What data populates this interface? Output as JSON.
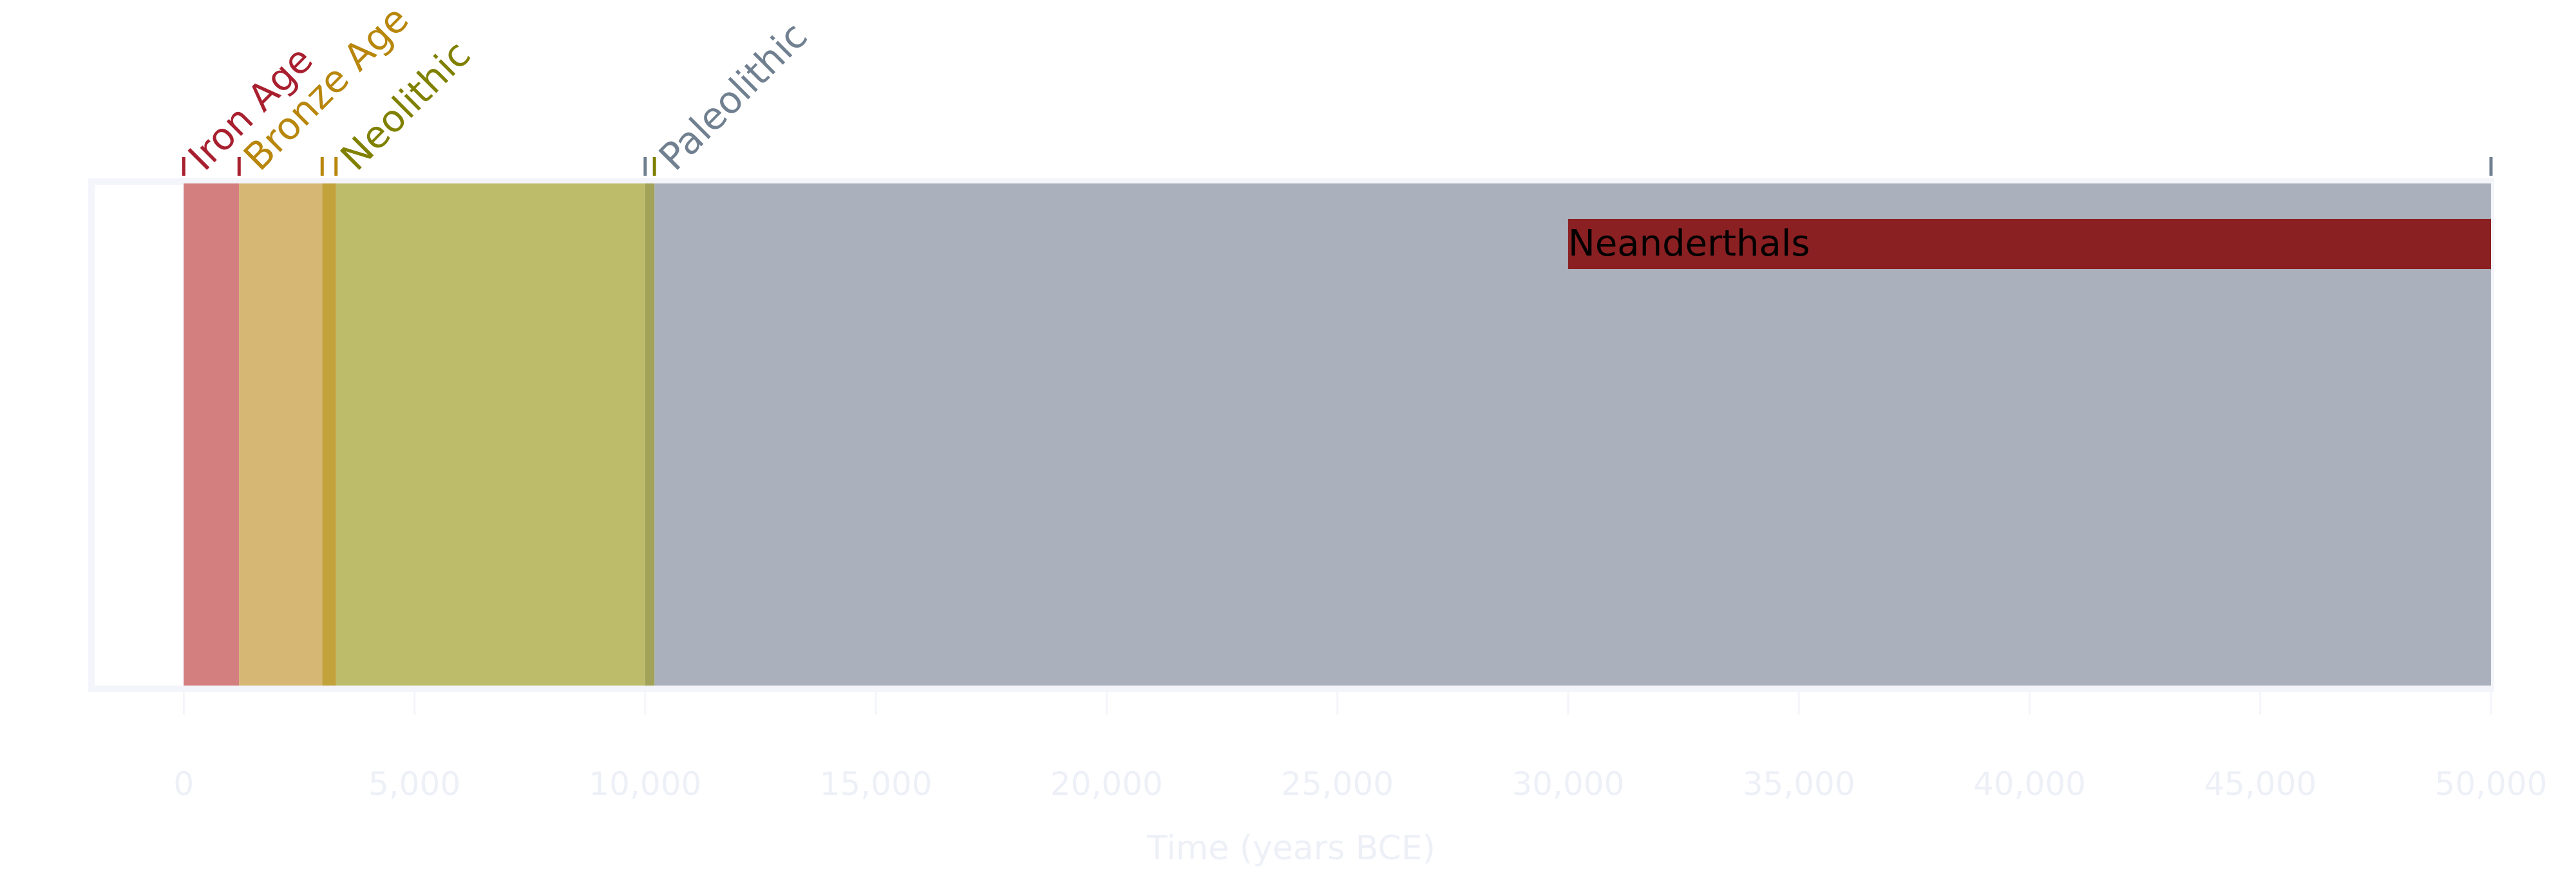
{
  "chart_data": {
    "type": "timeline",
    "title": "",
    "xlabel": "Time (years BCE)",
    "xlim": [
      -2000,
      50000
    ],
    "x_ticks": [
      0,
      5000,
      10000,
      15000,
      20000,
      25000,
      30000,
      35000,
      40000,
      45000,
      50000
    ],
    "x_tick_labels": [
      "0",
      "5,000",
      "10,000",
      "15,000",
      "20,000",
      "25,000",
      "30,000",
      "35,000",
      "40,000",
      "45,000",
      "50,000"
    ],
    "grid": true,
    "eras": [
      {
        "name": "Iron Age",
        "start": 0,
        "end": 1200,
        "fill": "#d47f7f",
        "label_color": "#a8202f"
      },
      {
        "name": "Bronze Age",
        "start": 1200,
        "end": 3000,
        "fill": "#d6b874",
        "label_color": "#b8860b"
      },
      {
        "name": "Neolithic",
        "start": 3300,
        "end": 10000,
        "fill": "#bdbc6b",
        "label_color": "#808000"
      },
      {
        "name": "Paleolithic",
        "start": 10200,
        "end": 50000,
        "fill": "#abb1bc",
        "label_color": "#708090"
      }
    ],
    "transitions": [
      {
        "start": 3000,
        "end": 3300,
        "fill": "#c1a23b"
      },
      {
        "start": 10000,
        "end": 10200,
        "fill": "#a2a259"
      }
    ],
    "era_ticks": [
      {
        "x": 0,
        "color": "#a8202f"
      },
      {
        "x": 1200,
        "color": "#a8202f"
      },
      {
        "x": 3000,
        "color": "#b8860b"
      },
      {
        "x": 3300,
        "color": "#b8860b"
      },
      {
        "x": 10000,
        "color": "#708090"
      },
      {
        "x": 10200,
        "color": "#808000"
      },
      {
        "x": 50000,
        "color": "#708090"
      }
    ],
    "events": [
      {
        "name": "Neanderthals",
        "start": 30000,
        "end": 50000,
        "color": "#8b2023"
      }
    ]
  }
}
